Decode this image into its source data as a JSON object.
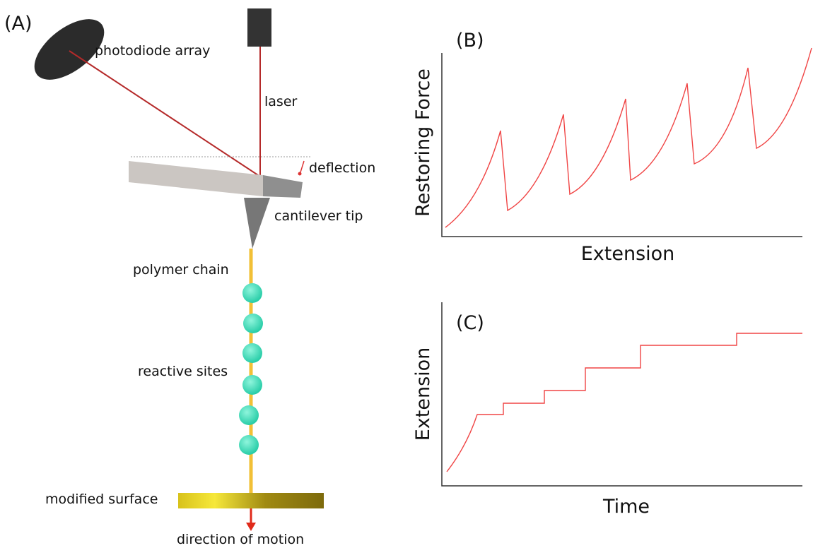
{
  "panel_a": {
    "label": "(A)",
    "photodiode": "photodiode array",
    "laser": "laser",
    "deflection": "deflection",
    "tip": "cantilever tip",
    "chain": "polymer chain",
    "sites": "reactive sites",
    "surface": "modified surface",
    "motion": "direction of motion"
  },
  "panel_b": {
    "label": "(B)",
    "y_axis": "Restoring Force",
    "x_axis": "Extension"
  },
  "panel_c": {
    "label": "(C)",
    "y_axis": "Extension",
    "x_axis": "Time"
  }
}
